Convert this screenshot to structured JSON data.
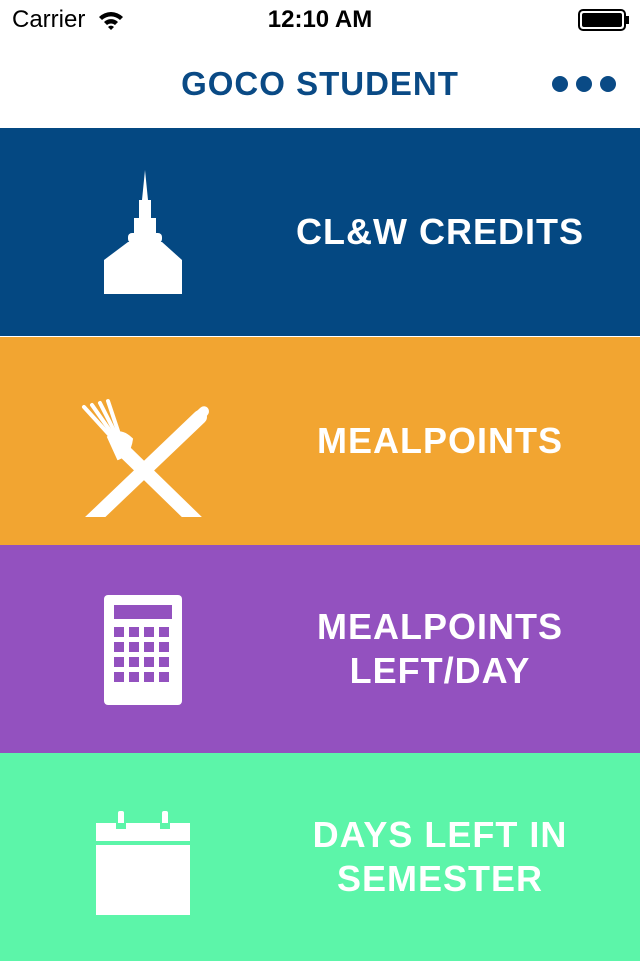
{
  "status_bar": {
    "carrier": "Carrier",
    "time": "12:10 AM",
    "icons": [
      "wifi-icon",
      "battery-icon"
    ]
  },
  "nav": {
    "title": "GOCO STUDENT",
    "more_icon": "more-dots-icon",
    "title_color": "#0a4a85"
  },
  "tiles": [
    {
      "label_lines": [
        "CL&W CREDITS"
      ],
      "icon": "chapel-icon",
      "color": "#044882"
    },
    {
      "label_lines": [
        "MEALPOINTS"
      ],
      "icon": "fork-knife-icon",
      "color": "#f2a531"
    },
    {
      "label_lines": [
        "MEALPOINTS",
        "LEFT/DAY"
      ],
      "icon": "calculator-icon",
      "color": "#9351bf"
    },
    {
      "label_lines": [
        "DAYS LEFT IN",
        "SEMESTER"
      ],
      "icon": "calendar-icon",
      "color": "#5cf5a9"
    }
  ]
}
